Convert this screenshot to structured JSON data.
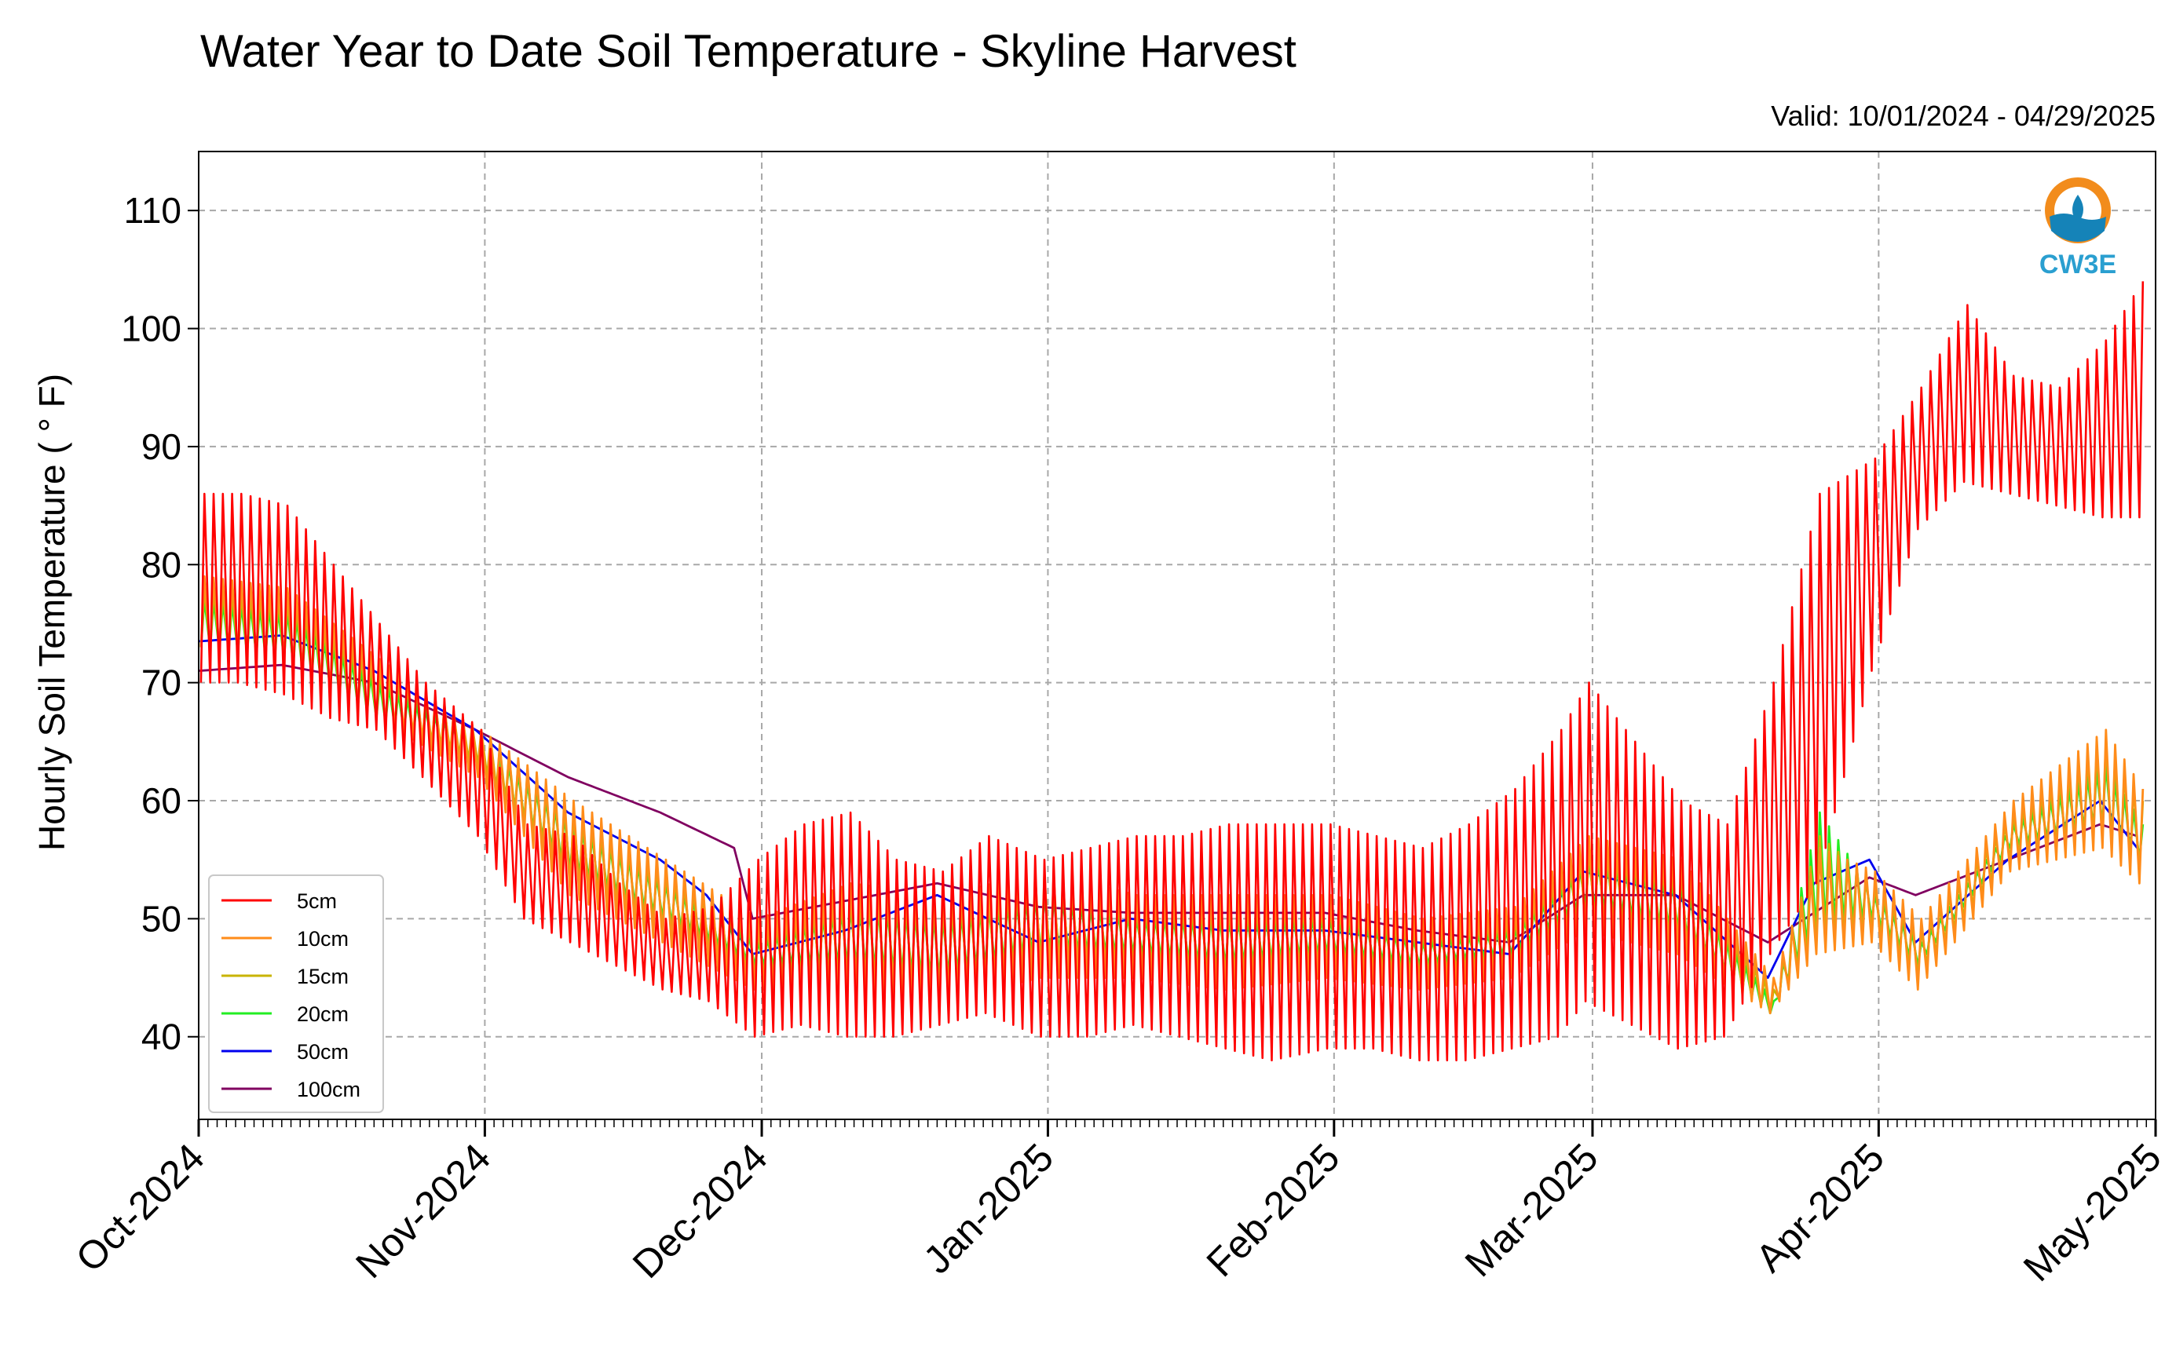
{
  "chart_data": {
    "type": "line",
    "title": "Water Year to Date Soil Temperature - Skyline Harvest",
    "subtitle": "Valid: 10/01/2024 - 04/29/2025",
    "xlabel": "",
    "ylabel": "Hourly Soil Temperature ( ° F)",
    "xlim": [
      "2024-10-01",
      "2025-05-01"
    ],
    "ylim": [
      33,
      115
    ],
    "y_ticks": [
      40,
      50,
      60,
      70,
      80,
      90,
      100,
      110
    ],
    "x_ticks": [
      {
        "label": "Oct-2024",
        "date": "2024-10-01"
      },
      {
        "label": "Nov-2024",
        "date": "2024-11-01"
      },
      {
        "label": "Dec-2024",
        "date": "2024-12-01"
      },
      {
        "label": "Jan-2025",
        "date": "2025-01-01"
      },
      {
        "label": "Feb-2025",
        "date": "2025-02-01"
      },
      {
        "label": "Mar-2025",
        "date": "2025-03-01"
      },
      {
        "label": "Apr-2025",
        "date": "2025-04-01"
      },
      {
        "label": "May-2025",
        "date": "2025-05-01"
      }
    ],
    "grid": true,
    "legend_position": "lower-left",
    "logo_text": "CW3E",
    "series": [
      {
        "name": "5cm",
        "color": "#ff0000",
        "x": [
          "2024-10-01",
          "2024-10-05",
          "2024-10-10",
          "2024-10-15",
          "2024-10-20",
          "2024-10-25",
          "2024-10-31",
          "2024-11-05",
          "2024-11-10",
          "2024-11-15",
          "2024-11-20",
          "2024-11-25",
          "2024-11-30",
          "2024-12-05",
          "2024-12-10",
          "2024-12-15",
          "2024-12-20",
          "2024-12-25",
          "2024-12-31",
          "2025-01-05",
          "2025-01-10",
          "2025-01-15",
          "2025-01-20",
          "2025-01-25",
          "2025-01-31",
          "2025-02-05",
          "2025-02-10",
          "2025-02-15",
          "2025-02-20",
          "2025-02-25",
          "2025-02-28",
          "2025-03-05",
          "2025-03-10",
          "2025-03-15",
          "2025-03-20",
          "2025-03-25",
          "2025-03-31",
          "2025-04-05",
          "2025-04-10",
          "2025-04-15",
          "2025-04-20",
          "2025-04-25",
          "2025-04-29"
        ],
        "high": [
          86,
          86,
          85,
          80,
          75,
          70,
          66,
          58,
          57,
          53,
          50,
          51,
          55,
          58,
          59,
          55,
          54,
          57,
          55,
          56,
          57,
          57,
          58,
          58,
          58,
          57,
          56,
          58,
          61,
          66,
          70,
          65,
          60,
          58,
          70,
          86,
          89,
          95,
          102,
          96,
          95,
          99,
          104
        ],
        "low": [
          70,
          70,
          69,
          67,
          66,
          62,
          57,
          50,
          48,
          46,
          44,
          43,
          40,
          41,
          40,
          40,
          41,
          42,
          40,
          40,
          41,
          40,
          39,
          38,
          39,
          39,
          38,
          38,
          39,
          40,
          43,
          41,
          39,
          40,
          47,
          53,
          71,
          83,
          87,
          86,
          85,
          84,
          84
        ]
      },
      {
        "name": "10cm",
        "color": "#ff8c1a",
        "x": [
          "2024-10-01",
          "2024-10-10",
          "2024-10-20",
          "2024-10-31",
          "2024-11-10",
          "2024-11-20",
          "2024-11-30",
          "2024-12-10",
          "2024-12-20",
          "2024-12-31",
          "2025-01-10",
          "2025-01-20",
          "2025-01-31",
          "2025-02-10",
          "2025-02-20",
          "2025-02-28",
          "2025-03-10",
          "2025-03-20",
          "2025-03-25",
          "2025-03-31",
          "2025-04-05",
          "2025-04-15",
          "2025-04-25",
          "2025-04-29"
        ],
        "high": [
          79,
          78,
          72,
          66,
          60,
          55,
          50,
          53,
          52,
          54,
          52,
          52,
          52,
          50,
          51,
          57,
          55,
          45,
          56,
          54,
          50,
          60,
          66,
          61
        ],
        "low": [
          73,
          72,
          67,
          62,
          52,
          48,
          44,
          44,
          43,
          45,
          45,
          44,
          45,
          44,
          45,
          49,
          47,
          42,
          47,
          48,
          44,
          54,
          56,
          53
        ]
      },
      {
        "name": "15cm",
        "color": "#c8b400",
        "x": [
          "2024-10-01",
          "2024-10-10",
          "2024-10-20",
          "2024-10-31",
          "2024-11-10",
          "2024-11-20",
          "2024-11-30",
          "2024-12-10",
          "2024-12-20",
          "2024-12-31",
          "2025-01-10",
          "2025-01-20",
          "2025-01-31",
          "2025-02-10",
          "2025-02-20",
          "2025-02-28",
          "2025-03-10",
          "2025-03-20",
          "2025-03-25",
          "2025-03-31",
          "2025-04-05",
          "2025-04-15",
          "2025-04-25",
          "2025-04-29"
        ],
        "high": [
          78,
          77,
          71,
          66,
          59,
          54,
          49,
          52,
          51,
          53,
          51,
          51,
          51,
          49,
          50,
          56,
          54,
          44,
          57,
          53,
          49,
          59,
          65,
          60
        ],
        "low": [
          73,
          72,
          67,
          63,
          53,
          49,
          45,
          45,
          44,
          46,
          46,
          45,
          46,
          45,
          46,
          50,
          48,
          42,
          48,
          49,
          45,
          55,
          57,
          54
        ]
      },
      {
        "name": "20cm",
        "color": "#22ee22",
        "x": [
          "2024-10-01",
          "2024-10-10",
          "2024-10-20",
          "2024-10-31",
          "2024-11-10",
          "2024-11-20",
          "2024-11-30",
          "2024-12-10",
          "2024-12-20",
          "2024-12-31",
          "2025-01-10",
          "2025-01-20",
          "2025-01-31",
          "2025-02-10",
          "2025-02-20",
          "2025-02-28",
          "2025-03-10",
          "2025-03-20",
          "2025-03-25",
          "2025-03-31",
          "2025-04-05",
          "2025-04-15",
          "2025-04-25",
          "2025-04-29"
        ],
        "high": [
          77,
          76,
          70,
          65,
          58,
          53,
          48,
          51,
          50,
          52,
          50,
          50,
          50,
          48,
          49,
          55,
          53,
          43,
          59,
          52,
          48,
          58,
          63,
          58
        ],
        "low": [
          73,
          72,
          67,
          63,
          54,
          50,
          46,
          46,
          45,
          47,
          47,
          46,
          47,
          46,
          47,
          51,
          49,
          42,
          49,
          50,
          46,
          56,
          58,
          55
        ]
      },
      {
        "name": "50cm",
        "color": "#0000ee",
        "x": [
          "2024-10-01",
          "2024-10-10",
          "2024-10-20",
          "2024-10-31",
          "2024-11-10",
          "2024-11-20",
          "2024-11-25",
          "2024-11-30",
          "2024-12-10",
          "2024-12-20",
          "2024-12-31",
          "2025-01-10",
          "2025-01-20",
          "2025-01-31",
          "2025-02-10",
          "2025-02-20",
          "2025-02-28",
          "2025-03-10",
          "2025-03-20",
          "2025-03-25",
          "2025-03-31",
          "2025-04-05",
          "2025-04-15",
          "2025-04-25",
          "2025-04-29"
        ],
        "values": [
          73.5,
          74,
          71,
          66,
          59,
          55,
          52,
          47,
          49,
          52,
          48,
          50,
          49,
          49,
          48,
          47,
          54,
          52,
          45,
          53,
          55,
          48,
          55,
          60,
          56
        ]
      },
      {
        "name": "100cm",
        "color": "#800060",
        "x": [
          "2024-10-01",
          "2024-10-10",
          "2024-10-20",
          "2024-10-31",
          "2024-11-10",
          "2024-11-20",
          "2024-11-28",
          "2024-11-30",
          "2024-12-10",
          "2024-12-20",
          "2024-12-31",
          "2025-01-10",
          "2025-01-20",
          "2025-01-31",
          "2025-02-10",
          "2025-02-20",
          "2025-02-28",
          "2025-03-10",
          "2025-03-20",
          "2025-03-31",
          "2025-04-05",
          "2025-04-15",
          "2025-04-25",
          "2025-04-29"
        ],
        "values": [
          71,
          71.5,
          70,
          66,
          62,
          59,
          56,
          50,
          51.5,
          53,
          51,
          50.5,
          50.5,
          50.5,
          49,
          48,
          52,
          52,
          48,
          53.5,
          52,
          55,
          58,
          57
        ]
      }
    ]
  }
}
